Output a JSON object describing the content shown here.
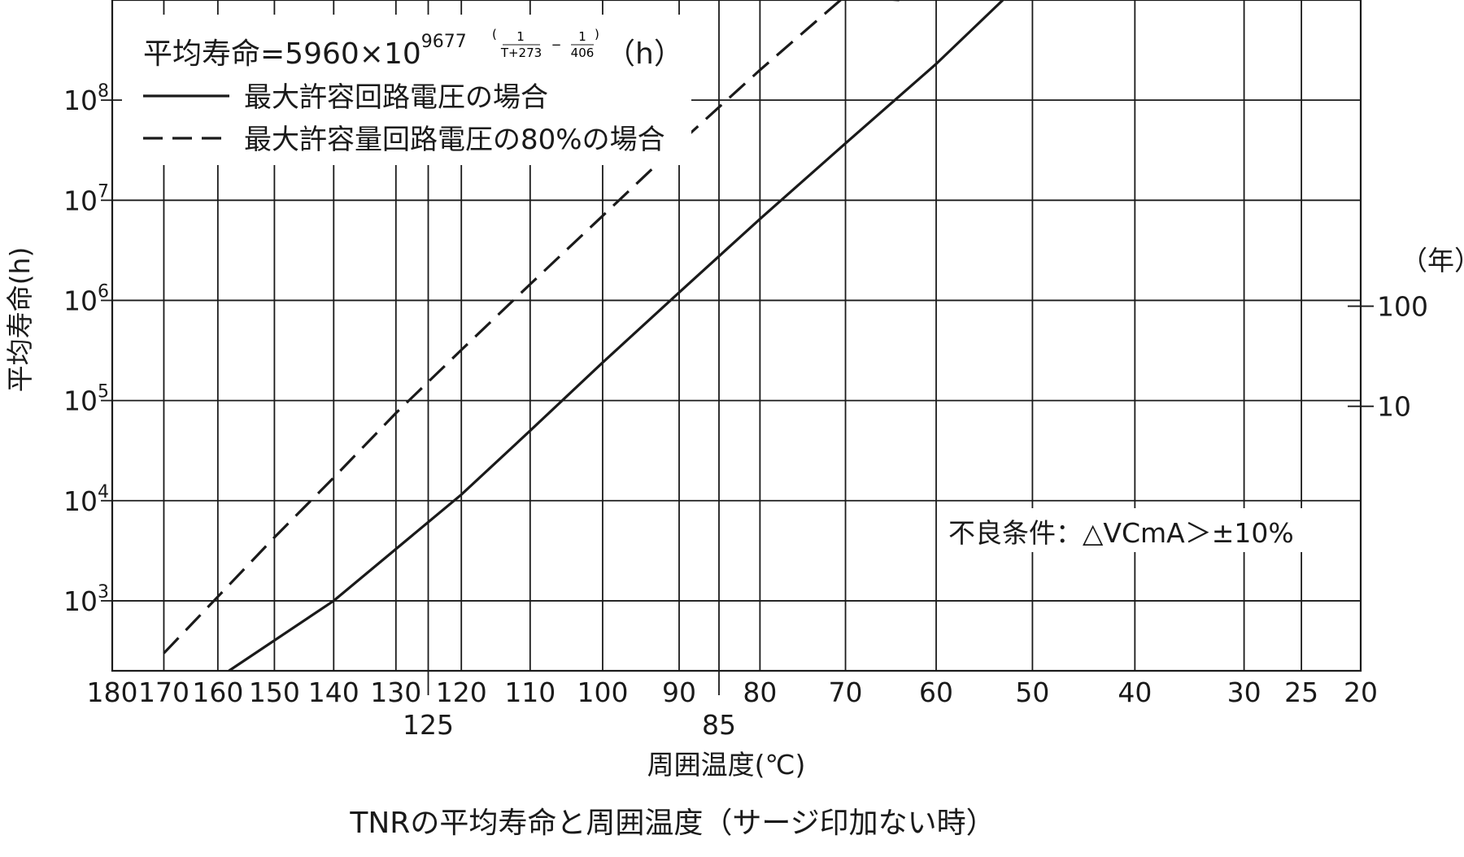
{
  "chart_data": {
    "type": "line",
    "title": "TNRの平均寿命と周囲温度（サージ印加ない時）",
    "xlabel": "周囲温度(℃)",
    "ylabel": "平均寿命(h)",
    "x_scale": "reciprocal absolute temperature",
    "x_ticks": [
      180,
      170,
      160,
      150,
      140,
      130,
      125,
      120,
      110,
      100,
      90,
      85,
      80,
      70,
      60,
      50,
      40,
      30,
      25,
      20
    ],
    "x_ticks_lower_row": [
      125,
      85
    ],
    "xlim": [
      180,
      20
    ],
    "y_scale": "log",
    "ylim": [
      200,
      1000000000
    ],
    "y_ticks": [
      {
        "value": 1000,
        "base": "10",
        "exp": "3"
      },
      {
        "value": 10000,
        "base": "10",
        "exp": "4"
      },
      {
        "value": 100000,
        "base": "10",
        "exp": "5"
      },
      {
        "value": 1000000,
        "base": "10",
        "exp": "6"
      },
      {
        "value": 10000000,
        "base": "10",
        "exp": "7"
      },
      {
        "value": 100000000,
        "base": "10",
        "exp": "8"
      }
    ],
    "right_axis": {
      "unit": "（年）",
      "ticks": [
        {
          "label": "100",
          "value_h": 876000
        },
        {
          "label": "10",
          "value_h": 87600
        }
      ]
    },
    "formula": {
      "prefix": "平均寿命=5960×10",
      "exponent": "9677",
      "frac1_num": "1",
      "frac1_den": "T+273",
      "frac2_num": "1",
      "frac2_den": "406",
      "open_paren": "(",
      "close_paren": ")",
      "minus": "−",
      "unit": "（h）"
    },
    "series": [
      {
        "name": "最大許容回路電圧の場合",
        "style": "solid",
        "x": [
          158,
          140,
          120,
          110,
          100,
          90,
          80,
          70,
          60,
          53
        ],
        "y": [
          200,
          1000,
          11500,
          50000,
          240000,
          1200000,
          6500000,
          37000000,
          230000000,
          1000000000
        ]
      },
      {
        "name": "最大許容量回路電圧の80%の場合",
        "style": "dashed",
        "x": [
          170,
          160,
          150,
          140,
          130,
          120,
          110,
          100,
          90,
          80,
          70,
          64
        ],
        "y": [
          300,
          1100,
          4300,
          17000,
          75000,
          320000,
          1450000,
          7000000,
          37000000,
          200000000,
          1100000000,
          1000000000
        ]
      }
    ],
    "annotation": "不良条件：△VCmA＞±10%",
    "grid": true,
    "legend_position": "top-left",
    "colors": {
      "line": "#1a1a1a",
      "grid": "#1a1a1a",
      "background": "#ffffff"
    }
  }
}
